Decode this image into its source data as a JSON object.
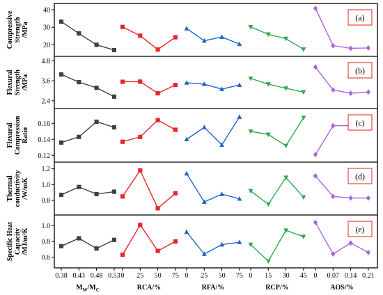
{
  "chart_data": {
    "type": "line",
    "factors": [
      {
        "name": "Mw/Mc",
        "color": "#404040",
        "marker": "square",
        "ticks": [
          "0.38",
          "0.43",
          "0.48",
          "0.53"
        ]
      },
      {
        "name": "RCA/%",
        "color": "#e8262a",
        "marker": "square",
        "ticks": [
          "0",
          "25",
          "50",
          "75"
        ]
      },
      {
        "name": "RFA/%",
        "color": "#1f64c8",
        "marker": "triangle",
        "ticks": [
          "0",
          "25",
          "50",
          "75"
        ]
      },
      {
        "name": "RCP/%",
        "color": "#2ea84f",
        "marker": "triangle-down",
        "ticks": [
          "0",
          "15",
          "30",
          "45"
        ]
      },
      {
        "name": "AOS/%",
        "color": "#a865e0",
        "marker": "diamond",
        "ticks": [
          "0",
          "0.07",
          "0.14",
          "0.21"
        ]
      }
    ],
    "panels": [
      {
        "label": "(a)",
        "ylabel": [
          "Compressive",
          "Strength",
          "/MPa"
        ],
        "ylim": [
          15,
          42
        ],
        "yticks": [
          20,
          30,
          40
        ],
        "ytick_labels": [
          "20",
          "30",
          "40"
        ],
        "series": [
          [
            33.2,
            26.5,
            20.0,
            17.0
          ],
          [
            30.2,
            25.2,
            17.3,
            24.3
          ],
          [
            29.3,
            22.3,
            24.5,
            20.4
          ],
          [
            30.2,
            26.0,
            23.5,
            17.4
          ],
          [
            40.8,
            19.5,
            18.0,
            18.2
          ]
        ]
      },
      {
        "label": "(b)",
        "ylabel": [
          "Flexural",
          "Strength",
          "/MPa"
        ],
        "ylim": [
          2.1,
          4.9
        ],
        "yticks": [
          2.4,
          3.6,
          4.8
        ],
        "ytick_labels": [
          "2.4",
          "3.6",
          "4.8"
        ],
        "series": [
          [
            3.98,
            3.52,
            3.18,
            2.65
          ],
          [
            3.54,
            3.55,
            2.85,
            3.35
          ],
          [
            3.48,
            3.4,
            3.1,
            3.35
          ],
          [
            3.74,
            3.4,
            3.15,
            2.92
          ],
          [
            4.42,
            3.05,
            2.85,
            2.92
          ]
        ]
      },
      {
        "label": "(c)",
        "ylabel": [
          "Flexural",
          "Compression",
          "Ratio"
        ],
        "ylim": [
          0.115,
          0.175
        ],
        "yticks": [
          0.12,
          0.14,
          0.16
        ],
        "ytick_labels": [
          "0.12",
          "0.14",
          "0.16"
        ],
        "series": [
          [
            0.136,
            0.143,
            0.162,
            0.155
          ],
          [
            0.137,
            0.143,
            0.164,
            0.152
          ],
          [
            0.14,
            0.155,
            0.133,
            0.168
          ],
          [
            0.15,
            0.146,
            0.132,
            0.167
          ],
          [
            0.121,
            0.157,
            0.157,
            0.162
          ]
        ]
      },
      {
        "label": "(d)",
        "ylabel": [
          "Thermal",
          "conductivity",
          "/W/mK"
        ],
        "ylim": [
          0.65,
          1.25
        ],
        "yticks": [
          0.8,
          1.0,
          1.2
        ],
        "ytick_labels": [
          "0.8",
          "1.0",
          "1.2"
        ],
        "series": [
          [
            0.87,
            0.97,
            0.88,
            0.91
          ],
          [
            0.85,
            1.18,
            0.7,
            0.89
          ],
          [
            1.14,
            0.78,
            0.88,
            0.82
          ],
          [
            0.92,
            0.75,
            1.09,
            0.84
          ],
          [
            1.11,
            0.85,
            0.83,
            0.83
          ]
        ]
      },
      {
        "label": "(e)",
        "ylabel": [
          "Specific Heat",
          "Capacity",
          "/MJ/m³K"
        ],
        "ylim": [
          0.5,
          1.1
        ],
        "yticks": [
          0.6,
          0.8,
          1.0
        ],
        "ytick_labels": [
          "0.6",
          "0.8",
          "1.0"
        ],
        "series": [
          [
            0.74,
            0.84,
            0.71,
            0.82
          ],
          [
            0.63,
            1.01,
            0.68,
            0.8
          ],
          [
            0.92,
            0.64,
            0.76,
            0.79
          ],
          [
            0.76,
            0.55,
            0.94,
            0.86
          ],
          [
            1.04,
            0.64,
            0.78,
            0.66
          ]
        ]
      }
    ],
    "xlabels": [
      "M",
      "RCA/%",
      "RFA/%",
      "RCP/%",
      "AOS/%"
    ],
    "xlabel_mw_sub": "W",
    "xlabel_mw_mid": "/M",
    "xlabel_mw_sub2": "C"
  }
}
